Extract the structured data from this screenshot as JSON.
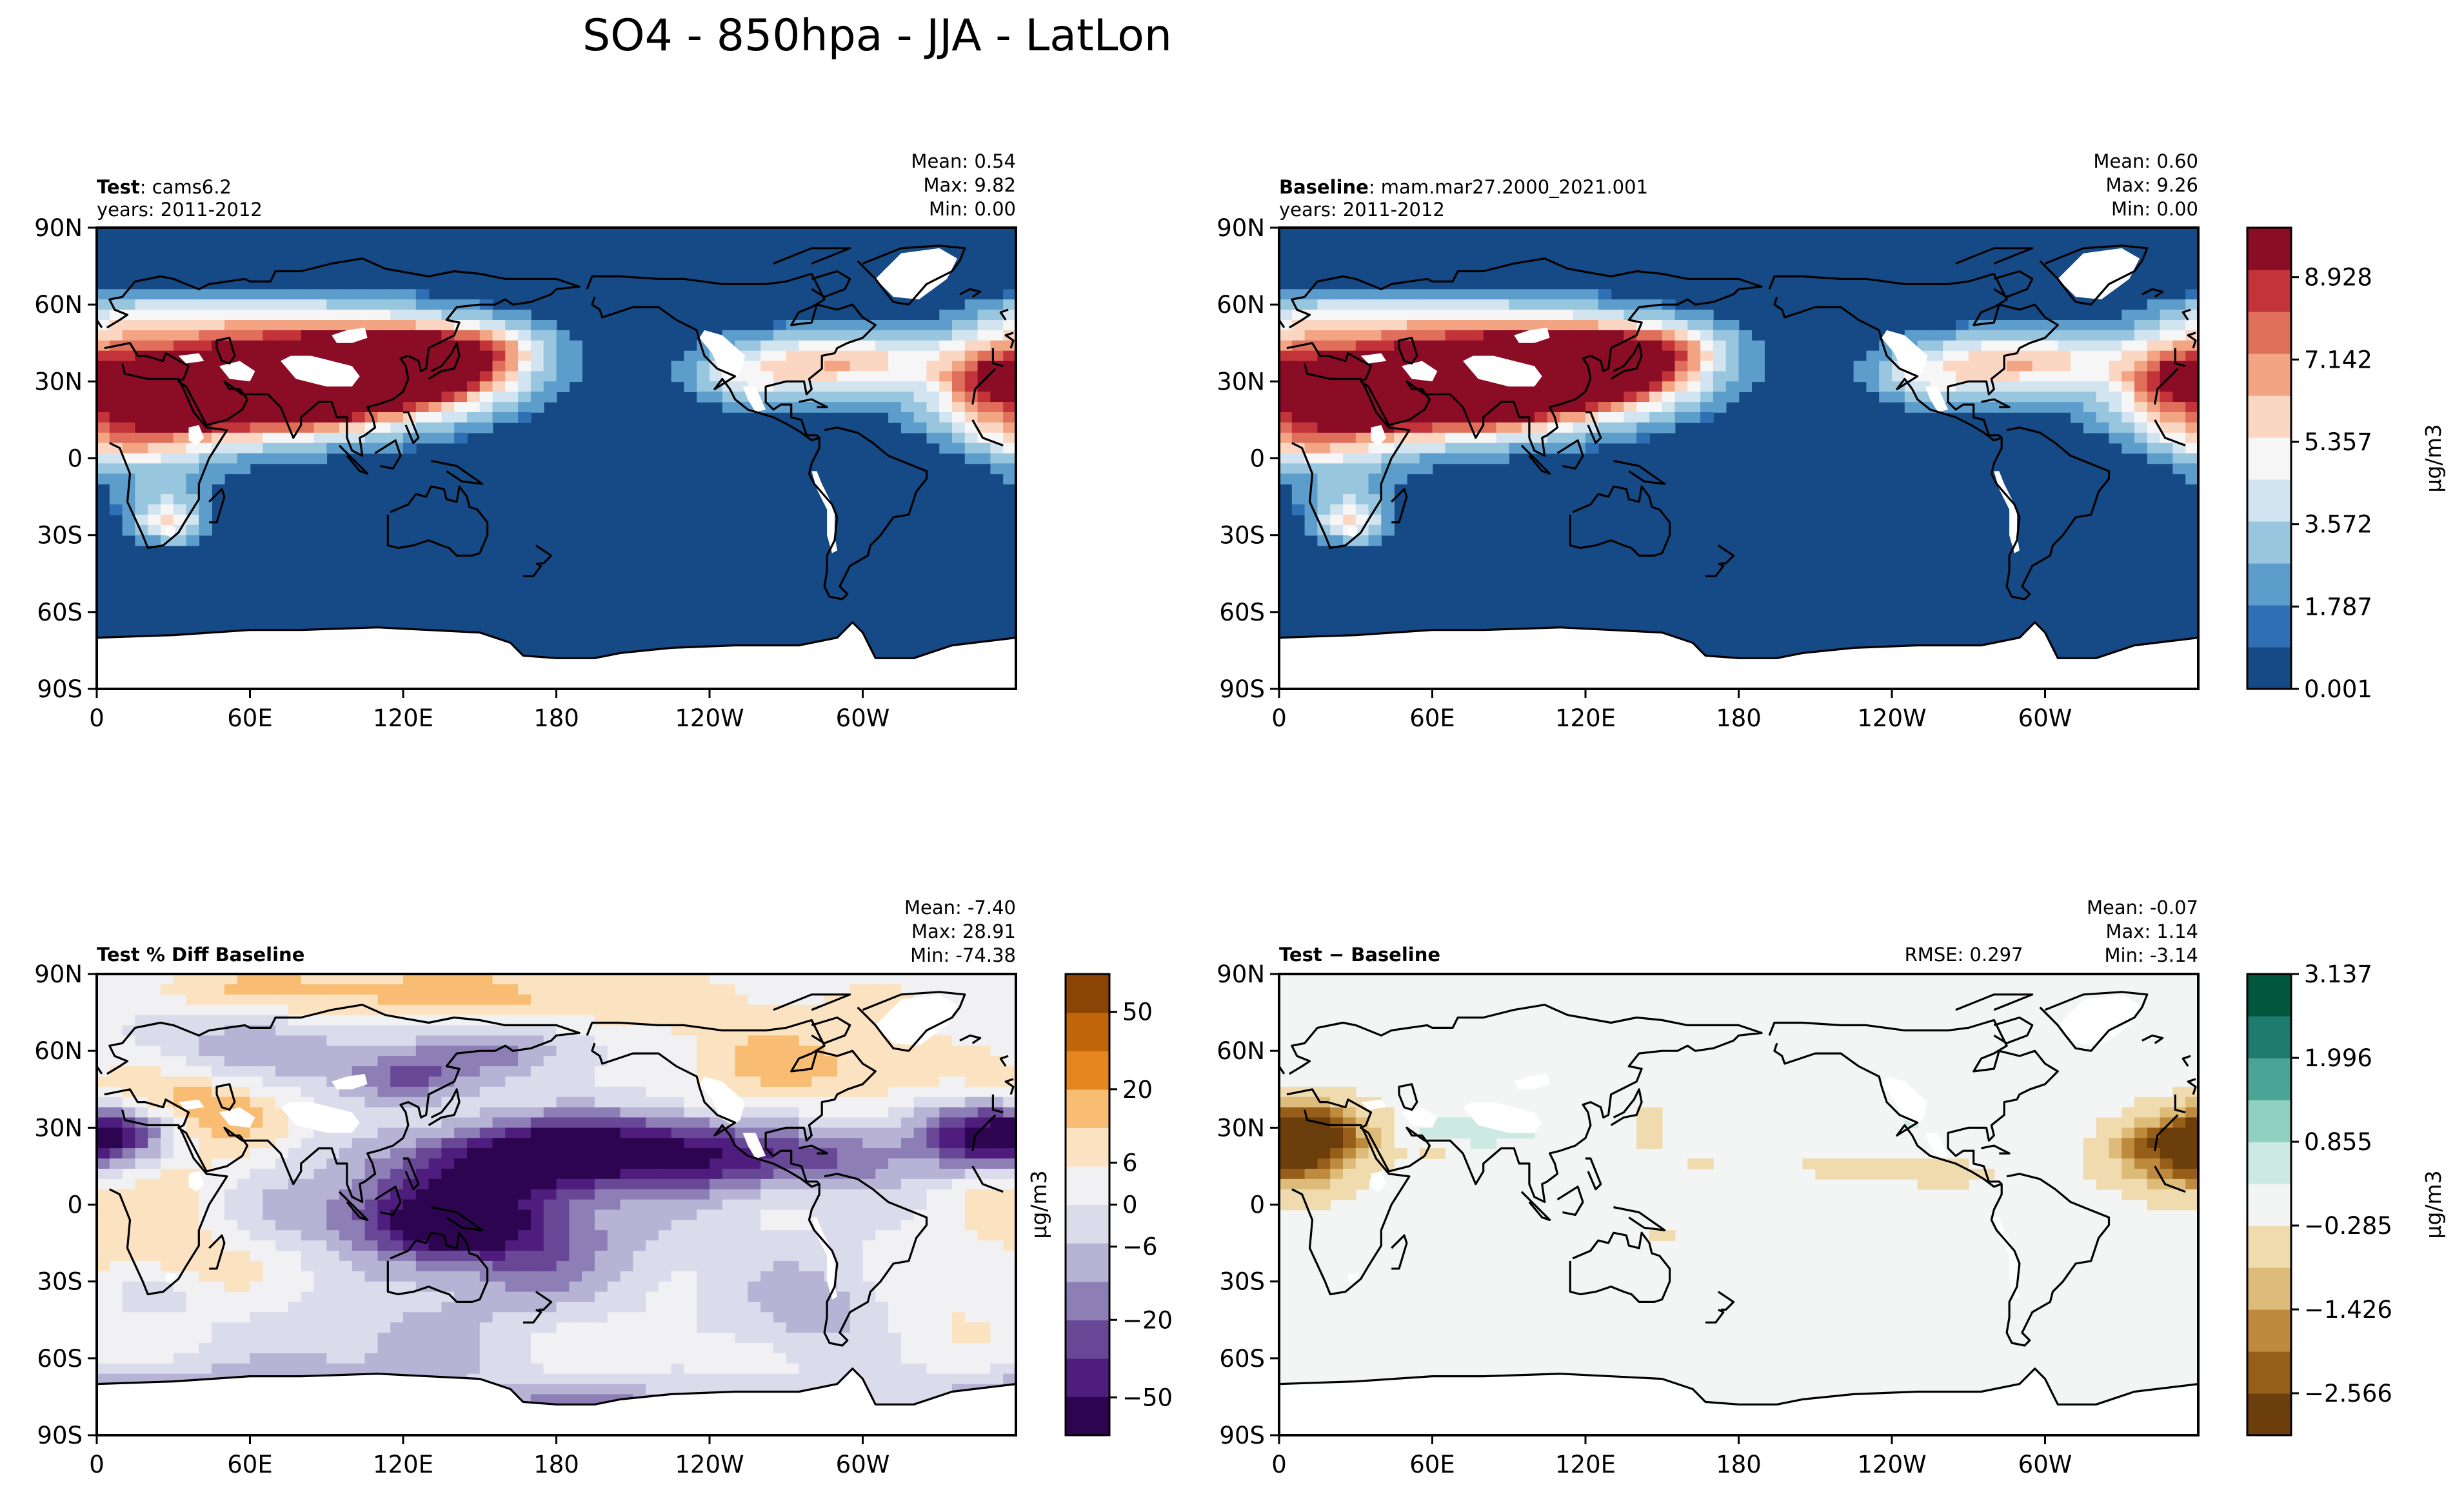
{
  "figure": {
    "title": "SO4 - 850hpa - JJA - LatLon",
    "lon_ticks": [
      "0",
      "60E",
      "120E",
      "180",
      "120W",
      "60W"
    ],
    "lat_ticks": [
      "90N",
      "60N",
      "30N",
      "0",
      "30S",
      "60S",
      "90S"
    ]
  },
  "colors": {
    "ocean_blue": "#164a86",
    "land_mask": "#ffffff",
    "diff_background": "#f3f5f4",
    "coast": "#000000"
  },
  "chart_data": [
    {
      "type": "heatmap",
      "id": "test",
      "label_bold": "Test",
      "label_rest": ": cams6.2",
      "years": "years: 2011-2012",
      "stats": [
        "Mean:  0.54",
        "Max:  9.82",
        "Min:  0.00"
      ],
      "rmse": "",
      "xlim": [
        0,
        360
      ],
      "ylim": [
        -90,
        90
      ],
      "field": "so4"
    },
    {
      "type": "heatmap",
      "id": "baseline",
      "label_bold": "Baseline",
      "label_rest": ": mam.mar27.2000_2021.001",
      "years": "years: 2011-2012",
      "stats": [
        "Mean:  0.60",
        "Max:  9.26",
        "Min:  0.00"
      ],
      "rmse": "",
      "xlim": [
        0,
        360
      ],
      "ylim": [
        -90,
        90
      ],
      "field": "so4",
      "colorbar": {
        "label": "μg/m3",
        "ticks": [
          "8.928",
          "7.142",
          "5.357",
          "3.572",
          "1.787",
          "0.001"
        ],
        "tick_values": [
          8.928,
          7.142,
          5.357,
          3.572,
          1.787,
          0.001
        ],
        "range": [
          0.001,
          10.0
        ],
        "colors": [
          "#164a86",
          "#2f70b5",
          "#5c9dcb",
          "#99c6df",
          "#d2e4f0",
          "#f6f6f6",
          "#fbd7c3",
          "#f3a583",
          "#df6f5a",
          "#c2343a",
          "#8b0c25"
        ]
      }
    },
    {
      "type": "heatmap",
      "id": "pctdiff",
      "label_bold": "Test % Diff Baseline",
      "label_rest": "",
      "years": "",
      "stats": [
        "Mean: -7.40",
        "Max: 28.91",
        "Min: -74.38"
      ],
      "rmse": "",
      "xlim": [
        0,
        360
      ],
      "ylim": [
        -90,
        90
      ],
      "field": "pctdiff",
      "colorbar": {
        "label": "μg/m3",
        "ticks": [
          "50",
          "20",
          "6",
          "0",
          "−6",
          "−20",
          "−50"
        ],
        "tick_fracs": [
          0.918,
          0.75,
          0.591,
          0.5,
          0.409,
          0.25,
          0.082
        ],
        "colors": [
          "#2d0450",
          "#4e1d7d",
          "#684796",
          "#8d7fb6",
          "#b7b3d5",
          "#dadbeb",
          "#f1f1f4",
          "#fbe2c0",
          "#f8bd73",
          "#e5871e",
          "#c0650a",
          "#8c4406"
        ]
      }
    },
    {
      "type": "heatmap",
      "id": "diff",
      "label_bold": "Test − Baseline",
      "label_rest": "",
      "years": "",
      "stats": [
        "Mean: -0.07",
        "Max:  1.14",
        "Min: -3.14"
      ],
      "rmse": "RMSE: 0.297",
      "xlim": [
        0,
        360
      ],
      "ylim": [
        -90,
        90
      ],
      "field": "diff",
      "colorbar": {
        "label": "μg/m3",
        "ticks": [
          "3.137",
          "1.996",
          "0.855",
          "−0.285",
          "−1.426",
          "−2.566"
        ],
        "tick_values": [
          3.137,
          1.996,
          0.855,
          -0.285,
          -1.426,
          -2.566
        ],
        "range": [
          -3.137,
          3.137
        ],
        "colors": [
          "#6b3e0b",
          "#965e18",
          "#be8b3e",
          "#dcbc78",
          "#efdbae",
          "#f3f5f4",
          "#cde9e3",
          "#8fd0c0",
          "#4ba596",
          "#1d7c6e",
          "#01573e"
        ]
      }
    }
  ]
}
